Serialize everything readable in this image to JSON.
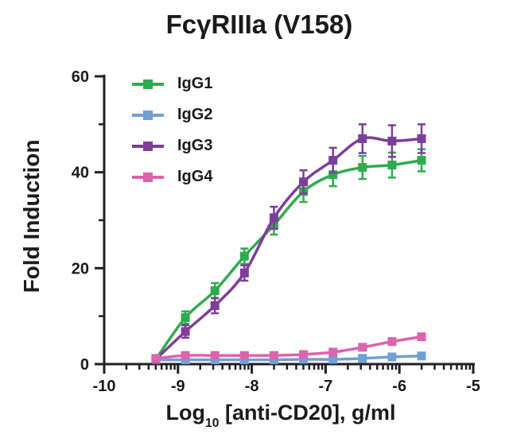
{
  "chart_data": {
    "type": "line",
    "title": "FcγRIIIa (V158)",
    "xlabel": "Log10 [anti-CD20], g/ml",
    "xlabel_parts": {
      "prefix": "Log",
      "sub": "10",
      "rest": " [anti-CD20], g/ml"
    },
    "ylabel": "Fold Induction",
    "xlim": [
      -10,
      -5
    ],
    "ylim": [
      0,
      60
    ],
    "x_major_ticks": [
      -10,
      -9,
      -8,
      -7,
      -6,
      -5
    ],
    "x_minor_ticks_log_decades": true,
    "y_major_ticks": [
      0,
      20,
      40,
      60
    ],
    "y_minor_ticks": [
      10,
      30,
      50
    ],
    "grid": false,
    "legend_position": "top-left-inside",
    "axis_color": "#231f20",
    "x_log10": [
      -9.3,
      -8.9,
      -8.5,
      -8.1,
      -7.7,
      -7.3,
      -6.9,
      -6.5,
      -6.1,
      -5.7
    ],
    "series": [
      {
        "name": "IgG1",
        "color": "#2fab4e",
        "values": [
          1.0,
          9.7,
          15.3,
          22.5,
          29.0,
          36.0,
          39.5,
          41.0,
          41.5,
          42.5
        ],
        "errors": [
          0.4,
          1.3,
          1.6,
          1.6,
          2.0,
          2.2,
          2.4,
          2.4,
          2.6,
          2.3
        ]
      },
      {
        "name": "IgG2",
        "color": "#6fa0d6",
        "values": [
          0.9,
          0.9,
          0.9,
          0.9,
          0.9,
          1.0,
          1.0,
          1.2,
          1.5,
          1.7
        ],
        "errors": [
          0.2,
          0.2,
          0.2,
          0.2,
          0.2,
          0.2,
          0.2,
          0.2,
          0.2,
          0.2
        ]
      },
      {
        "name": "IgG3",
        "color": "#7d3e9b",
        "values": [
          1.0,
          6.8,
          12.2,
          19.0,
          30.5,
          38.0,
          42.5,
          47.0,
          46.5,
          47.0
        ],
        "errors": [
          0.4,
          1.3,
          1.6,
          1.6,
          2.3,
          2.4,
          2.6,
          3.0,
          3.3,
          3.0
        ]
      },
      {
        "name": "IgG4",
        "color": "#dc64ad",
        "values": [
          1.2,
          1.8,
          1.8,
          1.8,
          1.8,
          2.0,
          2.5,
          3.5,
          4.7,
          5.7
        ],
        "errors": [
          0.3,
          0.3,
          0.3,
          0.3,
          0.3,
          0.3,
          0.3,
          0.3,
          0.3,
          0.3
        ]
      }
    ]
  }
}
